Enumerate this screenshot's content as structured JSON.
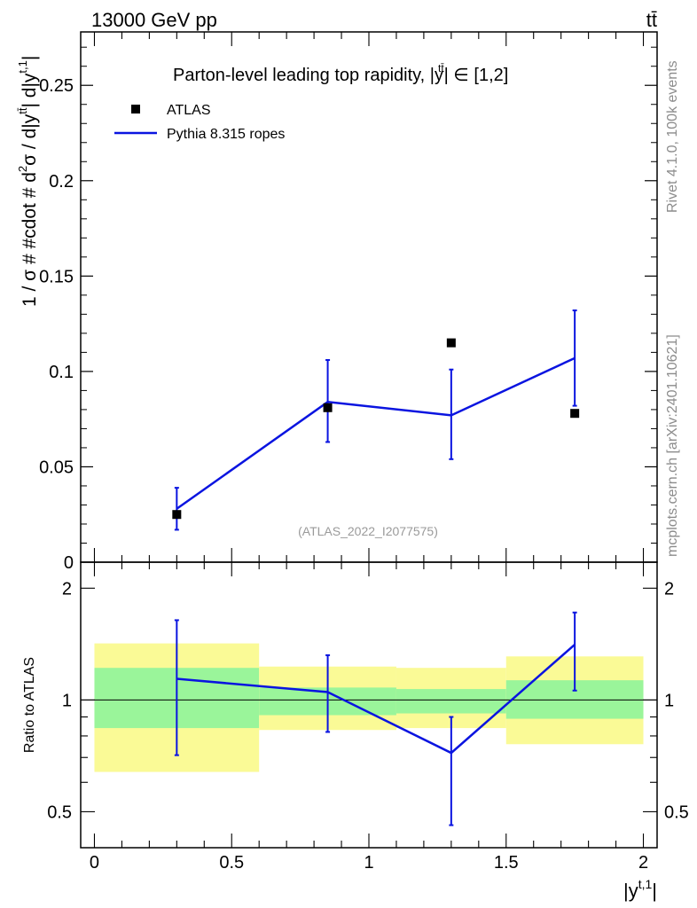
{
  "header": {
    "energy_label": "13000 GeV pp",
    "process_label": "tt̄"
  },
  "side_labels": {
    "rivet": "Rivet 4.1.0,  100k events",
    "mcplots": "mcplots.cern.ch [arXiv:2401.10621]"
  },
  "colors": {
    "mc_line": "#0a14e0",
    "band_inner": "#9af59a",
    "band_outer": "#fafa96",
    "data_marker": "#000000",
    "watermark": "#9a9a9a"
  },
  "chart_data": [
    {
      "id": "main",
      "type": "scatter",
      "title": "Parton-level leading top rapidity, |y^{tt̄}| ∈ [1,2]",
      "title_parts": {
        "prefix": "Parton-level leading top rapidity, |",
        "y": "y",
        "tt": "tt̄",
        "suffix": "| ∈ [1,2]"
      },
      "ylabel": "1 / σ # #cdot # d²σ / d|y^{tt̄}| d|y^{t,1}|",
      "ylabel_parts": {
        "pre": "1 / σ # #cdot # d",
        "two": "2",
        "mid": "σ / d|y",
        "tt": "tt̄",
        "mid2": "| d|y",
        "t1": "t,1",
        "post": "|"
      },
      "ylim": [
        0,
        0.278
      ],
      "yticks": [
        0,
        0.05,
        0.1,
        0.15,
        0.2,
        0.25
      ],
      "ytick_labels": [
        "0",
        "0.05",
        "0.1",
        "0.15",
        "0.2",
        "0.25"
      ],
      "xlim": [
        -0.05,
        2.05
      ],
      "watermark": "(ATLAS_2022_I2077575)",
      "legend": [
        {
          "name": "ATLAS",
          "kind": "marker"
        },
        {
          "name": "Pythia 8.315 ropes",
          "kind": "line"
        }
      ],
      "series": [
        {
          "name": "ATLAS",
          "x": [
            0.3,
            0.85,
            1.3,
            1.75
          ],
          "values": [
            0.025,
            0.081,
            0.115,
            0.078
          ]
        },
        {
          "name": "Pythia 8.315 ropes",
          "x": [
            0.3,
            0.85,
            1.3,
            1.75
          ],
          "values": [
            0.028,
            0.084,
            0.077,
            0.107
          ],
          "err_lo": [
            0.017,
            0.063,
            0.054,
            0.082
          ],
          "err_hi": [
            0.039,
            0.106,
            0.101,
            0.132
          ]
        }
      ]
    },
    {
      "id": "ratio",
      "type": "line",
      "ylabel": "Ratio to ATLAS",
      "ylim": [
        0.4,
        2.35
      ],
      "yscale": "log",
      "yticks": [
        0.5,
        1,
        2
      ],
      "ytick_labels": [
        "0.5",
        "1",
        "2"
      ],
      "xlim": [
        -0.05,
        2.05
      ],
      "xticks": [
        0,
        0.5,
        1,
        1.5,
        2
      ],
      "xtick_labels": [
        "0",
        "0.5",
        "1",
        "1.5",
        "2"
      ],
      "xlabel": "|y^{t,1}|",
      "xlabel_parts": {
        "pre": "|y",
        "sup": "t,1",
        "post": "|"
      },
      "bins": [
        [
          0,
          0.6
        ],
        [
          0.6,
          1.1
        ],
        [
          1.1,
          1.5
        ],
        [
          1.5,
          2.0
        ]
      ],
      "band_inner": [
        [
          0.84,
          1.22
        ],
        [
          0.91,
          1.08
        ],
        [
          0.92,
          1.07
        ],
        [
          0.89,
          1.13
        ]
      ],
      "band_outer": [
        [
          0.64,
          1.42
        ],
        [
          0.83,
          1.23
        ],
        [
          0.84,
          1.22
        ],
        [
          0.76,
          1.31
        ]
      ],
      "series": [
        {
          "name": "Pythia 8.315 ropes",
          "x": [
            0.3,
            0.85,
            1.3,
            1.75
          ],
          "values": [
            1.14,
            1.05,
            0.72,
            1.41
          ],
          "err_lo": [
            0.71,
            0.82,
            0.46,
            1.06
          ],
          "err_hi": [
            1.64,
            1.32,
            0.9,
            1.72
          ]
        }
      ]
    }
  ]
}
